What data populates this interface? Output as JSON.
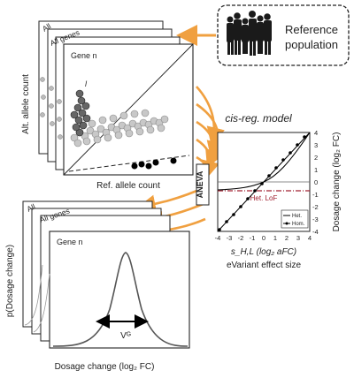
{
  "reference": {
    "label_line1": "Reference",
    "label_line2": "population"
  },
  "scatter": {
    "stack_label_all": "All",
    "stack_label_genes": "All genes",
    "panel_label": "Gene n",
    "annotation": "l",
    "y_label": "Alt. allele count",
    "x_label": "Ref. allele count"
  },
  "model": {
    "title": "cis-reg. model",
    "aneva_label": "ANEVA",
    "het_lof_label": "Het. LoF",
    "legend_het": "Het.",
    "legend_hom": "Hom.",
    "y_label": "Dosage change (log₂ FC)",
    "x_label_short": "s_H,L (log₂ aFC)",
    "x_label_long": "eVariant effect size",
    "x_ticks": [
      "-4",
      "-3",
      "-2",
      "-1",
      "0",
      "1",
      "2",
      "3",
      "4"
    ],
    "y_ticks": [
      "4",
      "3",
      "2",
      "1",
      "0",
      "-1",
      "-2",
      "-3",
      "-4"
    ]
  },
  "distribution": {
    "stack_label_all": "All",
    "stack_label_genes": "All genes",
    "panel_label": "Gene n",
    "y_label": "p(Dosage change)",
    "x_label": "Dosage change (log₂ FC)",
    "vg_label": "Vᴳ"
  },
  "colors": {
    "arrow": "#f0a040",
    "het_lof": "#a02030",
    "line": "#000000",
    "gray_dot": "#bbbbbb",
    "dark_dot": "#444444"
  }
}
